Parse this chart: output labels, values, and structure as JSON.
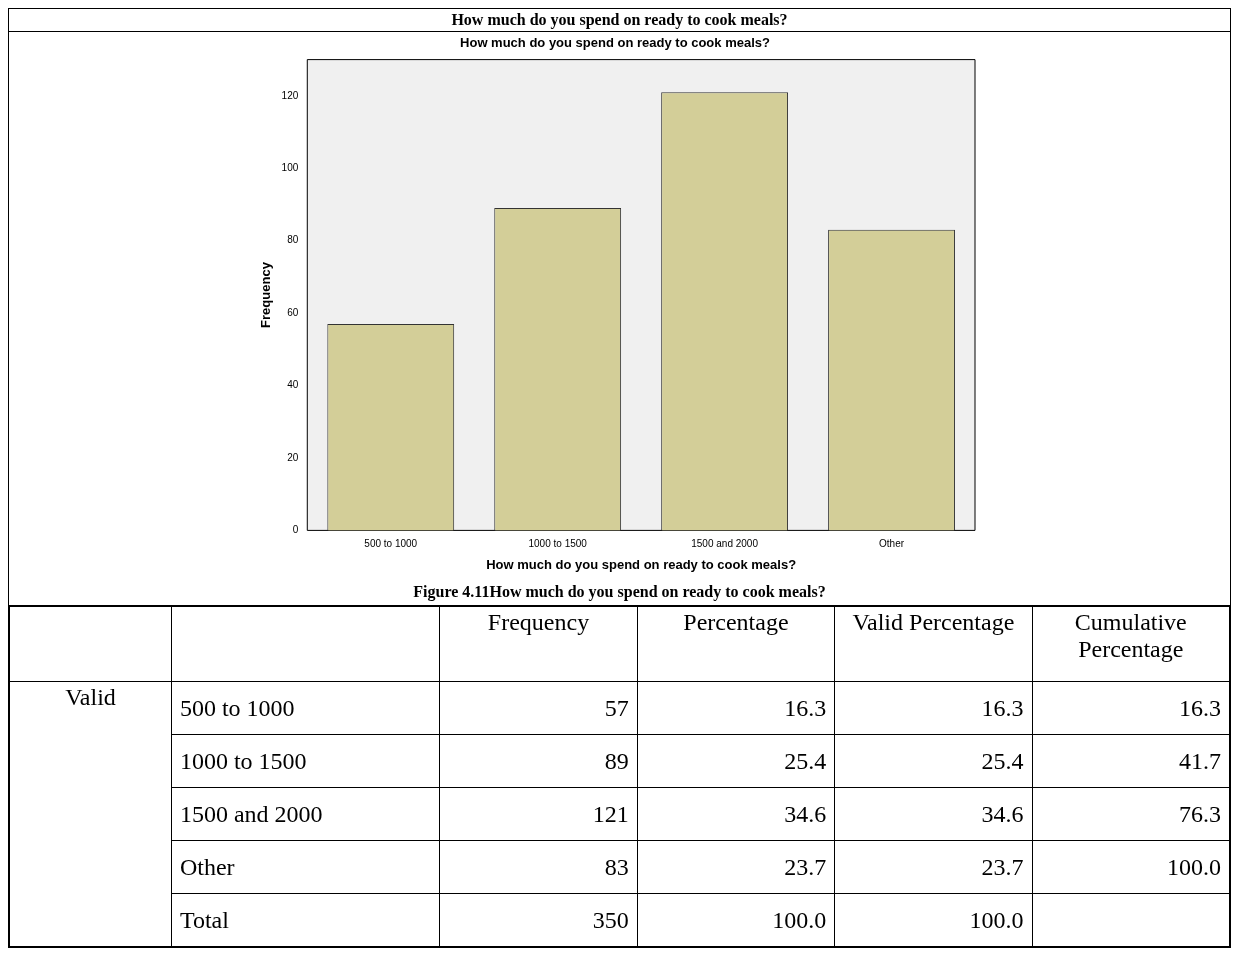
{
  "chart_data": [
    {
      "type": "bar",
      "title": "How much do you spend on ready to cook meals?",
      "xlabel": "How much do you spend on ready to cook meals?",
      "ylabel": "Frequency",
      "categories": [
        "500 to 1000",
        "1000 to 1500",
        "1500 and 2000",
        "Other"
      ],
      "values": [
        57,
        89,
        121,
        83
      ],
      "color": "#d3ce98",
      "ylim": [
        0,
        130
      ],
      "yticks": [
        0,
        20,
        40,
        60,
        80,
        100,
        120
      ],
      "grid": false,
      "annotations": [
        "How much do you spend on ready to cook meals?",
        "Figure 4.11How much do you spend on ready to cook meals?"
      ]
    },
    {
      "type": "other",
      "categories": [
        "Frequency",
        "Percentage",
        "Valid Percentage",
        "Cumulative Percentage"
      ],
      "y_categories": [
        "500 to 1000",
        "1000 to 1500",
        "1500 and 2000",
        "Other",
        "Total"
      ],
      "cell_labels": [
        [
          "57",
          "16.3",
          "16.3",
          "16.3"
        ],
        [
          "89",
          "25.4",
          "25.4",
          "41.7"
        ],
        [
          "121",
          "34.6",
          "34.6",
          "76.3"
        ],
        [
          "83",
          "23.7",
          "23.7",
          "100.0"
        ],
        [
          "350",
          "100.0",
          "100.0",
          null
        ]
      ],
      "annotations": [
        "Valid"
      ]
    }
  ]
}
